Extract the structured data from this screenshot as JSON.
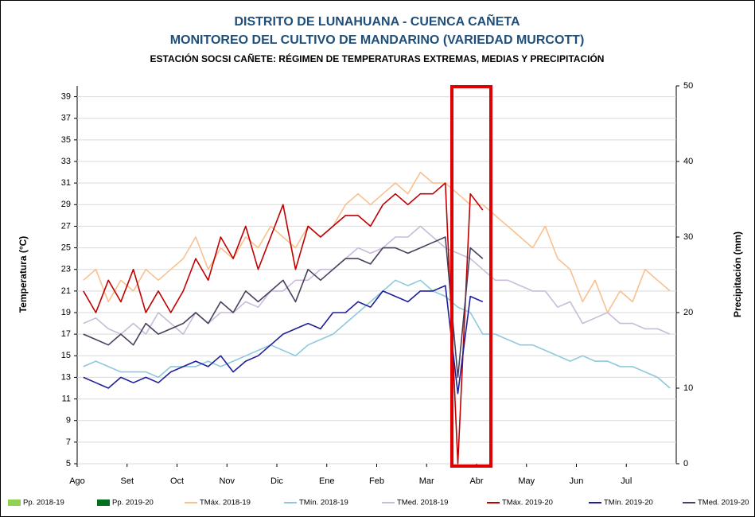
{
  "chart_data": {
    "type": "line",
    "title": "DISTRITO DE LUNAHUANA - CUENCA CAÑETA",
    "subtitle": "MONITOREO DEL CULTIVO DE MANDARINO (VARIEDAD MURCOTT)",
    "subtitle2": "ESTACIÓN SOCSI CAÑETE: RÉGIMEN DE TEMPERATURAS EXTREMAS, MEDIAS Y PRECIPITACIÓN",
    "ylabel": "Temperatura (°C)",
    "y2label": "Precipitación (mm)",
    "categories": [
      "Ago",
      null,
      null,
      null,
      "Set",
      null,
      null,
      null,
      "Oct",
      null,
      null,
      null,
      "Nov",
      null,
      null,
      null,
      "Dic",
      null,
      null,
      null,
      "Ene",
      null,
      null,
      null,
      "Feb",
      null,
      null,
      null,
      "Mar",
      null,
      null,
      null,
      "Abr",
      null,
      null,
      null,
      "May",
      null,
      null,
      null,
      "Jun",
      null,
      null,
      null,
      "Jul",
      null,
      null,
      null
    ],
    "ylim": [
      5,
      40
    ],
    "yticks": [
      5,
      7,
      9,
      11,
      13,
      15,
      17,
      19,
      21,
      23,
      25,
      27,
      29,
      31,
      33,
      35,
      37,
      39
    ],
    "y2lim": [
      0,
      50
    ],
    "y2ticks": [
      0,
      10,
      20,
      30,
      40,
      50
    ],
    "series": [
      {
        "name": "Pp. 2018-19",
        "color": "#92d050",
        "axis": "y2",
        "kind": "bar",
        "values": [
          0,
          0,
          0,
          0,
          0,
          0,
          0,
          0,
          0,
          0,
          0,
          0,
          0,
          0,
          0,
          0,
          0,
          0,
          0,
          0,
          0,
          0,
          0,
          0,
          0,
          0,
          0,
          0,
          0,
          0,
          0,
          0,
          0,
          0,
          0,
          0,
          0,
          0,
          0,
          0,
          0,
          0,
          0,
          0,
          0,
          0,
          0,
          0
        ]
      },
      {
        "name": "Pp. 2019-20",
        "color": "#00701c",
        "axis": "y2",
        "kind": "bar",
        "values": [
          0,
          0,
          0,
          0,
          0,
          0,
          0,
          0,
          0,
          0,
          0,
          0,
          0,
          0,
          0,
          0,
          0,
          0,
          0,
          0,
          0,
          0,
          0,
          0,
          0,
          0,
          0,
          0,
          0,
          0,
          0,
          0,
          0,
          null,
          null,
          null,
          null,
          null,
          null,
          null,
          null,
          null,
          null,
          null,
          null,
          null,
          null,
          null
        ]
      },
      {
        "name": "TMáx. 2018-19",
        "color": "#f9c08f",
        "values": [
          22,
          23,
          20,
          22,
          21,
          23,
          22,
          23,
          24,
          26,
          23,
          25,
          24,
          26,
          25,
          27,
          26,
          25,
          27,
          26,
          27,
          29,
          30,
          29,
          30,
          31,
          30,
          32,
          31,
          31,
          30,
          29,
          29,
          28,
          27,
          26,
          25,
          27,
          24,
          23,
          20,
          22,
          19,
          21,
          20,
          23,
          22,
          21
        ]
      },
      {
        "name": "TMín. 2018-19",
        "color": "#8dc9dc",
        "values": [
          14,
          14.5,
          14,
          13.5,
          13.5,
          13.5,
          13,
          14,
          14,
          14,
          14.5,
          14,
          14.5,
          15,
          15.5,
          16,
          15.5,
          15,
          16,
          16.5,
          17,
          18,
          19,
          20,
          21,
          22,
          21.5,
          22,
          21,
          20.5,
          19.5,
          19,
          17,
          17,
          16.5,
          16,
          16,
          15.5,
          15,
          14.5,
          15,
          14.5,
          14.5,
          14,
          14,
          13.5,
          13,
          12
        ]
      },
      {
        "name": "TMed. 2018-19",
        "color": "#c8bcd9",
        "values": [
          18,
          18.5,
          17.5,
          17,
          18,
          17,
          19,
          18,
          17,
          19,
          18,
          19,
          19,
          20,
          19.5,
          21,
          21,
          22,
          22,
          23,
          23,
          24,
          25,
          24.5,
          25,
          26,
          26,
          27,
          26,
          25,
          24.5,
          24,
          23,
          22,
          22,
          21.5,
          21,
          21,
          19.5,
          20,
          18,
          18.5,
          19,
          18,
          18,
          17.5,
          17.5,
          17
        ]
      },
      {
        "name": "TMáx. 2019-20",
        "color": "#c00000",
        "values": [
          21,
          19,
          22,
          20,
          23,
          19,
          21,
          19,
          21,
          24,
          22,
          26,
          24,
          27,
          23,
          26,
          29,
          23,
          27,
          26,
          27,
          28,
          28,
          27,
          29,
          30,
          29,
          30,
          30,
          31,
          5,
          30,
          28.5,
          null,
          null,
          null,
          null,
          null,
          null,
          null,
          null,
          null,
          null,
          null,
          null,
          null,
          null,
          null
        ]
      },
      {
        "name": "TMín. 2019-20",
        "color": "#1f1f9a",
        "values": [
          13,
          12.5,
          12,
          13,
          12.5,
          13,
          12.5,
          13.5,
          14,
          14.5,
          14,
          15,
          13.5,
          14.5,
          15,
          16,
          17,
          17.5,
          18,
          17.5,
          19,
          19,
          20,
          19.5,
          21,
          20.5,
          20,
          21,
          21,
          21.5,
          11.5,
          20.5,
          20,
          null,
          null,
          null,
          null,
          null,
          null,
          null,
          null,
          null,
          null,
          null,
          null,
          null,
          null,
          null
        ]
      },
      {
        "name": "TMed. 2019-20",
        "color": "#4a3f5c",
        "values": [
          17,
          16.5,
          16,
          17,
          16,
          18,
          17,
          17.5,
          18,
          19,
          18,
          20,
          19,
          21,
          20,
          21,
          22,
          20,
          23,
          22,
          23,
          24,
          24,
          23.5,
          25,
          25,
          24.5,
          25,
          25.5,
          26,
          13,
          25,
          24,
          null,
          null,
          null,
          null,
          null,
          null,
          null,
          null,
          null,
          null,
          null,
          null,
          null,
          null,
          null
        ]
      }
    ]
  }
}
